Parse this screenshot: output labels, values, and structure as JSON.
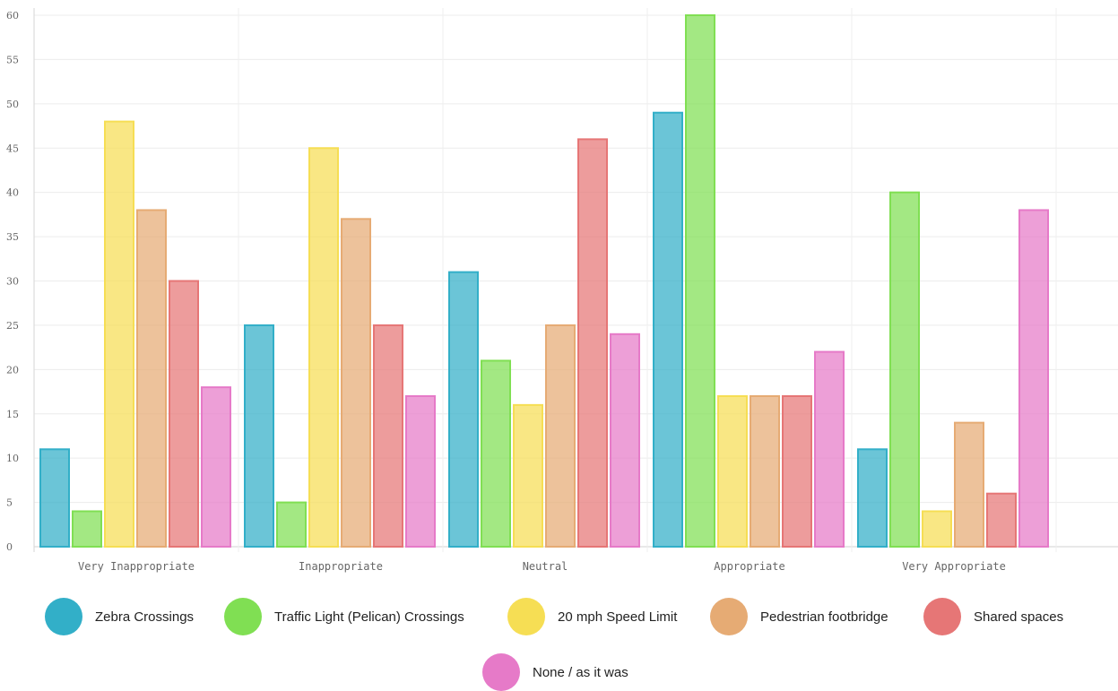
{
  "chart_data": {
    "type": "bar",
    "categories": [
      "Very Inappropriate",
      "Inappropriate",
      "Neutral",
      "Appropriate",
      "Very Appropriate"
    ],
    "series": [
      {
        "name": "Zebra Crossings",
        "color": "#32AFC8",
        "values": [
          11,
          25,
          31,
          49,
          11
        ]
      },
      {
        "name": "Traffic Light (Pelican) Crossings",
        "color": "#80DF53",
        "values": [
          4,
          5,
          21,
          60,
          40
        ]
      },
      {
        "name": "20 mph Speed Limit",
        "color": "#F6DE54",
        "values": [
          48,
          45,
          16,
          17,
          4
        ]
      },
      {
        "name": "Pedestrian footbridge",
        "color": "#E6AB74",
        "values": [
          38,
          37,
          25,
          17,
          14
        ]
      },
      {
        "name": "Shared spaces",
        "color": "#E67676",
        "values": [
          30,
          25,
          46,
          17,
          6
        ]
      },
      {
        "name": "None / as it was",
        "color": "#E67AC8",
        "values": [
          18,
          17,
          24,
          22,
          38
        ]
      }
    ],
    "y_ticks": [
      "0",
      "5",
      "10",
      "15",
      "20",
      "25",
      "30",
      "35",
      "40",
      "45",
      "50",
      "55",
      "60"
    ],
    "ylim": [
      0,
      60
    ],
    "grid": true,
    "legend_position": "bottom"
  }
}
